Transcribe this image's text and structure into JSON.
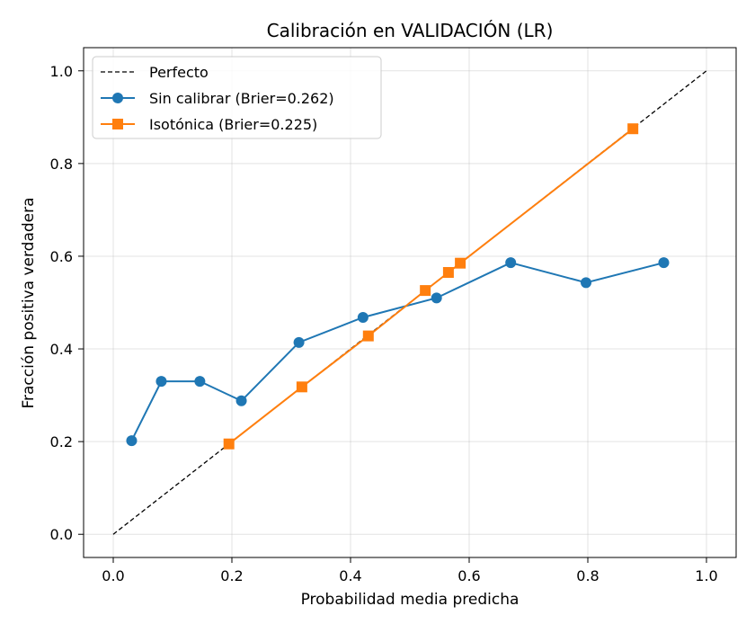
{
  "chart_data": {
    "type": "line",
    "title": "Calibración en VALIDACIÓN (LR)",
    "xlabel": "Probabilidad media predicha",
    "ylabel": "Fracción positiva verdadera",
    "xlim": [
      -0.05,
      1.05
    ],
    "ylim": [
      -0.05,
      1.05
    ],
    "xticks": [
      "0.0",
      "0.2",
      "0.4",
      "0.6",
      "0.8",
      "1.0"
    ],
    "yticks": [
      "0.0",
      "0.2",
      "0.4",
      "0.6",
      "0.8",
      "1.0"
    ],
    "grid": true,
    "legend_position": "top-left",
    "series": [
      {
        "name": "Perfecto",
        "color": "#000000",
        "style": "dashed",
        "marker": "none",
        "x": [
          0.0,
          1.0
        ],
        "y": [
          0.0,
          1.0
        ]
      },
      {
        "name": "Sin calibrar (Brier=0.262)",
        "color": "#1f77b4",
        "style": "solid",
        "marker": "circle",
        "x": [
          0.031,
          0.081,
          0.146,
          0.216,
          0.313,
          0.421,
          0.545,
          0.67,
          0.797,
          0.928
        ],
        "y": [
          0.202,
          0.33,
          0.33,
          0.288,
          0.414,
          0.468,
          0.51,
          0.586,
          0.543,
          0.586
        ]
      },
      {
        "name": "Isotónica (Brier=0.225)",
        "color": "#ff7f0e",
        "style": "solid",
        "marker": "square",
        "x": [
          0.195,
          0.318,
          0.43,
          0.526,
          0.565,
          0.585,
          0.876
        ],
        "y": [
          0.195,
          0.318,
          0.428,
          0.526,
          0.565,
          0.585,
          0.875
        ]
      }
    ]
  }
}
